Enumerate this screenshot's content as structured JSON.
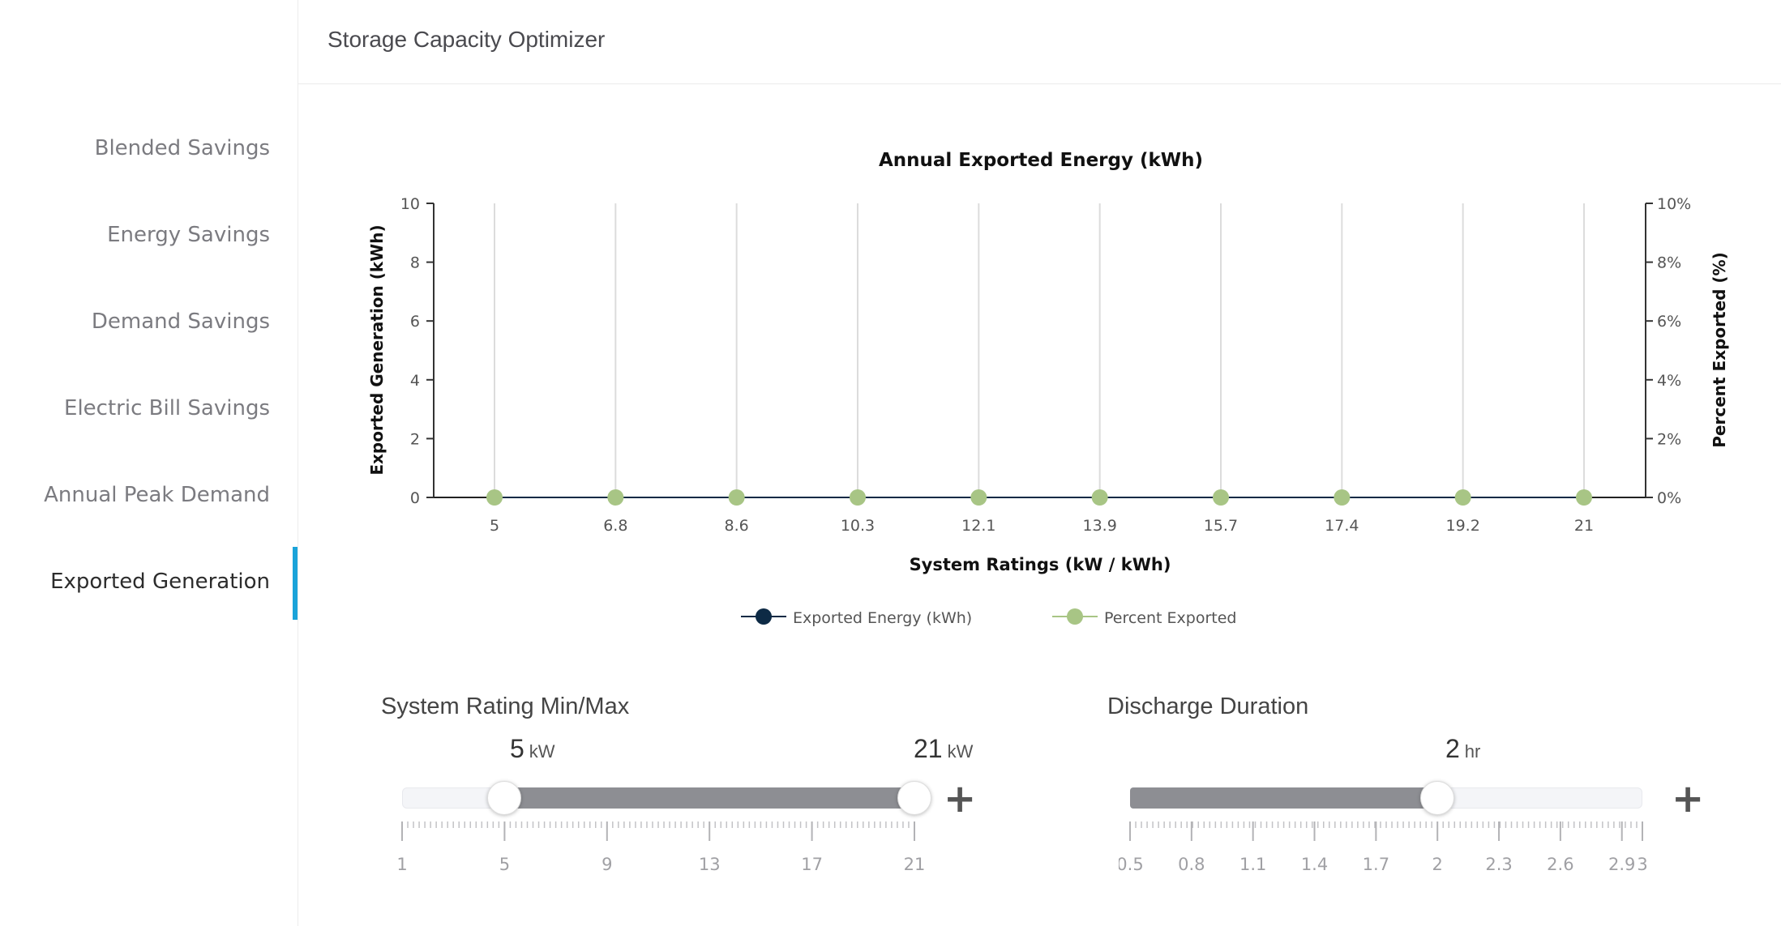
{
  "header": {
    "title": "Storage Capacity Optimizer"
  },
  "sidebar": {
    "items": [
      {
        "label": "Blended Savings",
        "active": false
      },
      {
        "label": "Energy Savings",
        "active": false
      },
      {
        "label": "Demand Savings",
        "active": false
      },
      {
        "label": "Electric Bill Savings",
        "active": false
      },
      {
        "label": "Annual Peak Demand",
        "active": false
      },
      {
        "label": "Exported Generation",
        "active": true
      }
    ],
    "accent": "#1aa3d9"
  },
  "chart_data": {
    "type": "line",
    "title": "Annual Exported Energy (kWh)",
    "xlabel": "System Ratings (kW / kWh)",
    "ylabel": "Exported Generation (kWh)",
    "y2label": "Percent Exported (%)",
    "categories": [
      "5",
      "6.8",
      "8.6",
      "10.3",
      "12.1",
      "13.9",
      "15.7",
      "17.4",
      "19.2",
      "21"
    ],
    "ylim": [
      0,
      10
    ],
    "yticks": [
      "0",
      "2",
      "4",
      "6",
      "8",
      "10"
    ],
    "y2lim": [
      0,
      10
    ],
    "y2ticks": [
      "0%",
      "2%",
      "4%",
      "6%",
      "8%",
      "10%"
    ],
    "grid": "vertical",
    "legend_position": "bottom",
    "series": [
      {
        "name": "Exported Energy (kWh)",
        "values": [
          0,
          0,
          0,
          0,
          0,
          0,
          0,
          0,
          0,
          0
        ],
        "color": "#0d2a45"
      },
      {
        "name": "Percent Exported",
        "values": [
          0,
          0,
          0,
          0,
          0,
          0,
          0,
          0,
          0,
          0
        ],
        "color": "#a8c585"
      }
    ]
  },
  "sliders": {
    "rating": {
      "title": "System Rating Min/Max",
      "min_value": "5",
      "max_value": "21",
      "unit": "kW",
      "range": [
        1,
        21
      ],
      "low": 5,
      "high": 21,
      "tick_labels": [
        "1",
        "5",
        "9",
        "13",
        "17",
        "21"
      ]
    },
    "duration": {
      "title": "Discharge Duration",
      "value": "2",
      "unit": "hr",
      "range": [
        0.5,
        3
      ],
      "current": 2,
      "tick_labels": [
        "0.5",
        "0.8",
        "1.1",
        "1.4",
        "1.7",
        "2",
        "2.3",
        "2.6",
        "2.9",
        "3"
      ]
    },
    "plus_label": "+"
  }
}
